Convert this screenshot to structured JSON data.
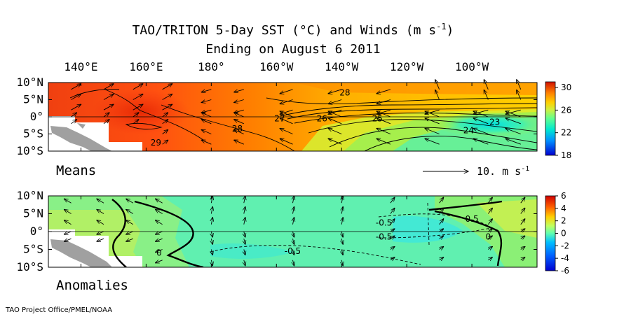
{
  "header": {
    "title_pre": "TAO/TRITON 5-Day SST (",
    "title_deg": "°",
    "title_mid": "C) and Winds (m s",
    "title_sup": "-1",
    "title_post": ")",
    "subtitle": "Ending on August 6 2011"
  },
  "credit": "TAO Project Office/PMEL/NOAA",
  "chart_data": [
    {
      "type": "heatmap",
      "panel": "Means",
      "quantity": "SST (°C) with wind vectors",
      "xticks": [
        "140°E",
        "160°E",
        "180°",
        "160°W",
        "140°W",
        "120°W",
        "100°W"
      ],
      "yticks": [
        "10°N",
        "5°N",
        "0°",
        "5°S",
        "10°S"
      ],
      "xlim_lon_east": [
        130,
        280
      ],
      "ylim_lat": [
        -10,
        10
      ],
      "colorbar": {
        "ticks": [
          "30",
          "26",
          "22",
          "18"
        ],
        "range": [
          18,
          31
        ],
        "colors": [
          "#0000d0",
          "#00a0ff",
          "#00e8d0",
          "#60ff90",
          "#d0f040",
          "#ffd000",
          "#ff8000",
          "#e02000"
        ]
      },
      "contour_labels": [
        {
          "text": "28",
          "lon": 221,
          "lat": 7.0
        },
        {
          "text": "28",
          "lon": 188,
          "lat": -3.5
        },
        {
          "text": "27",
          "lon": 201,
          "lat": -0.5
        },
        {
          "text": "26",
          "lon": 214,
          "lat": -0.5
        },
        {
          "text": "25",
          "lon": 231,
          "lat": -0.5
        },
        {
          "text": "24",
          "lon": 259,
          "lat": -4.0
        },
        {
          "text": "23",
          "lon": 267,
          "lat": -1.5
        },
        {
          "text": "29",
          "lon": 163,
          "lat": -7.5
        }
      ],
      "reference_vector": {
        "label": "10.  m s",
        "sup": "-1"
      }
    },
    {
      "type": "heatmap",
      "panel": "Anomalies",
      "quantity": "SST anomaly (°C) with wind anomaly vectors",
      "xticks": [
        "140°E",
        "160°E",
        "180°",
        "160°W",
        "140°W",
        "120°W",
        "100°W"
      ],
      "yticks": [
        "10°N",
        "5°N",
        "0°",
        "5°S",
        "10°S"
      ],
      "xlim_lon_east": [
        130,
        280
      ],
      "ylim_lat": [
        -10,
        10
      ],
      "colorbar": {
        "ticks": [
          "6",
          "4",
          "2",
          "0",
          "-2",
          "-4",
          "-6"
        ],
        "range": [
          -6,
          6
        ],
        "colors": [
          "#0000d0",
          "#0060ff",
          "#00c0ff",
          "#60ffb0",
          "#c0ff60",
          "#ffd000",
          "#ff6000",
          "#d00000"
        ]
      },
      "contour_labels": [
        {
          "text": "-0.5",
          "lon": 233,
          "lat": 2.5
        },
        {
          "text": "-0.5",
          "lon": 233,
          "lat": -1.5
        },
        {
          "text": "-0.5",
          "lon": 205,
          "lat": -5.5
        },
        {
          "text": "0.5",
          "lon": 260,
          "lat": 3.5
        },
        {
          "text": "0",
          "lon": 164,
          "lat": -6.0
        },
        {
          "text": "0",
          "lon": 265,
          "lat": -1.5
        }
      ]
    }
  ],
  "panels": {
    "means_label": "Means",
    "anom_label": "Anomalies"
  }
}
